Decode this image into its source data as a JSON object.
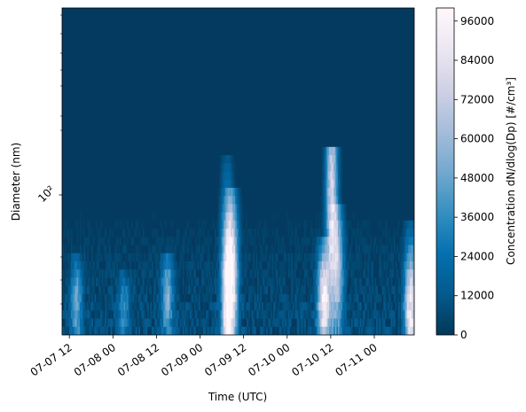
{
  "chart_data": {
    "type": "heatmap",
    "xlabel": "Time (UTC)",
    "ylabel": "Diameter (nm)",
    "y_scale": "log",
    "y_tick_labels": [
      "10²"
    ],
    "x_tick_labels": [
      "07-07 12",
      "07-08 00",
      "07-08 12",
      "07-09 00",
      "07-09 12",
      "07-10 00",
      "07-10 12",
      "07-11 00"
    ],
    "x_tick_hours": [
      12,
      24,
      36,
      48,
      60,
      72,
      84,
      96
    ],
    "x_range_hours": [
      10,
      107
    ],
    "colorbar": {
      "label": "Concentration dN/dlog(Dp) [#/cm³]",
      "ticks": [
        0,
        12000,
        24000,
        36000,
        48000,
        60000,
        72000,
        84000,
        96000
      ],
      "tick_labels": [
        "0",
        "12000",
        "24000",
        "36000",
        "48000",
        "60000",
        "72000",
        "84000",
        "96000"
      ],
      "range": [
        0,
        100000
      ],
      "colormap": "PuBu_r",
      "colors": [
        "#023858",
        "#045a8d",
        "#0570b0",
        "#3690c0",
        "#74a9cf",
        "#a6bddb",
        "#d0d1e6",
        "#ece7f2",
        "#fff7fb"
      ]
    },
    "background_color": "#043a60",
    "events": [
      {
        "time_hours": 55.5,
        "peak_diameter_fraction": 0.12,
        "extent_fraction": 0.55,
        "intensity": 1.0
      },
      {
        "time_hours": 57.0,
        "peak_diameter_fraction": 0.2,
        "extent_fraction": 0.45,
        "intensity": 0.75
      },
      {
        "time_hours": 82.0,
        "peak_diameter_fraction": 0.1,
        "extent_fraction": 0.3,
        "intensity": 1.0
      },
      {
        "time_hours": 84.3,
        "peak_diameter_fraction": 0.42,
        "extent_fraction": 0.58,
        "intensity": 0.9
      },
      {
        "time_hours": 86.0,
        "peak_diameter_fraction": 0.2,
        "extent_fraction": 0.4,
        "intensity": 0.6
      },
      {
        "time_hours": 106.0,
        "peak_diameter_fraction": 0.08,
        "extent_fraction": 0.35,
        "intensity": 1.0
      },
      {
        "time_hours": 14.0,
        "peak_diameter_fraction": 0.1,
        "extent_fraction": 0.25,
        "intensity": 0.5
      },
      {
        "time_hours": 39.0,
        "peak_diameter_fraction": 0.12,
        "extent_fraction": 0.25,
        "intensity": 0.55
      },
      {
        "time_hours": 27.0,
        "peak_diameter_fraction": 0.08,
        "extent_fraction": 0.2,
        "intensity": 0.35
      }
    ]
  }
}
